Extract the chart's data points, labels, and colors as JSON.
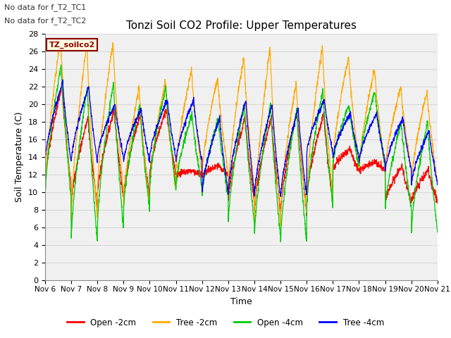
{
  "title": "Tonzi Soil CO2 Profile: Upper Temperatures",
  "xlabel": "Time",
  "ylabel": "Soil Temperature (C)",
  "ylim": [
    0,
    28
  ],
  "yticks": [
    0,
    2,
    4,
    6,
    8,
    10,
    12,
    14,
    16,
    18,
    20,
    22,
    24,
    26,
    28
  ],
  "xtick_labels": [
    "Nov 6",
    "Nov 7",
    "Nov 8",
    "Nov 9",
    "Nov 10",
    "Nov 11",
    "Nov 12",
    "Nov 13",
    "Nov 14",
    "Nov 15",
    "Nov 16",
    "Nov 17",
    "Nov 18",
    "Nov 19",
    "Nov 20",
    "Nov 21"
  ],
  "legend_labels": [
    "Open -2cm",
    "Tree -2cm",
    "Open -4cm",
    "Tree -4cm"
  ],
  "legend_colors": [
    "#ff0000",
    "#ffaa00",
    "#00cc00",
    "#0000ff"
  ],
  "no_data_text": [
    "No data for f_T2_TC1",
    "No data for f_T2_TC2"
  ],
  "dataset_label": "TZ_soilco2",
  "background_color": "#ffffff",
  "plot_bg_color": "#f0f0f0",
  "grid_color": "#d8d8d8"
}
